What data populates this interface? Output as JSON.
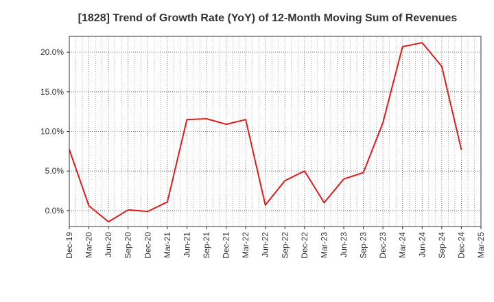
{
  "chart_data": {
    "type": "line",
    "title": "[1828]  Trend of Growth Rate (YoY) of 12-Month Moving Sum of Revenues",
    "xlabel": "",
    "ylabel": "",
    "categories": [
      "Dec-19",
      "Mar-20",
      "Jun-20",
      "Sep-20",
      "Dec-20",
      "Mar-21",
      "Jun-21",
      "Sep-21",
      "Dec-21",
      "Mar-22",
      "Jun-22",
      "Sep-22",
      "Dec-22",
      "Mar-23",
      "Jun-23",
      "Sep-23",
      "Dec-23",
      "Mar-24",
      "Jun-24",
      "Sep-24",
      "Dec-24",
      "Mar-25"
    ],
    "series": [
      {
        "color": "#e31a1c",
        "values": [
          7.7,
          0.6,
          -1.4,
          0.1,
          -0.1,
          1.1,
          11.5,
          11.6,
          10.9,
          11.5,
          0.7,
          3.8,
          5.0,
          1.0,
          4.0,
          4.8,
          11.1,
          20.7,
          21.2,
          18.2,
          7.7,
          null
        ]
      }
    ],
    "ylim": [
      -2.0,
      22.0
    ],
    "yticks": [
      0.0,
      5.0,
      10.0,
      15.0,
      20.0
    ],
    "ytick_labels": [
      "0.0%",
      "5.0%",
      "10.0%",
      "15.0%",
      "20.0%"
    ],
    "grid": true,
    "legend": "none"
  }
}
